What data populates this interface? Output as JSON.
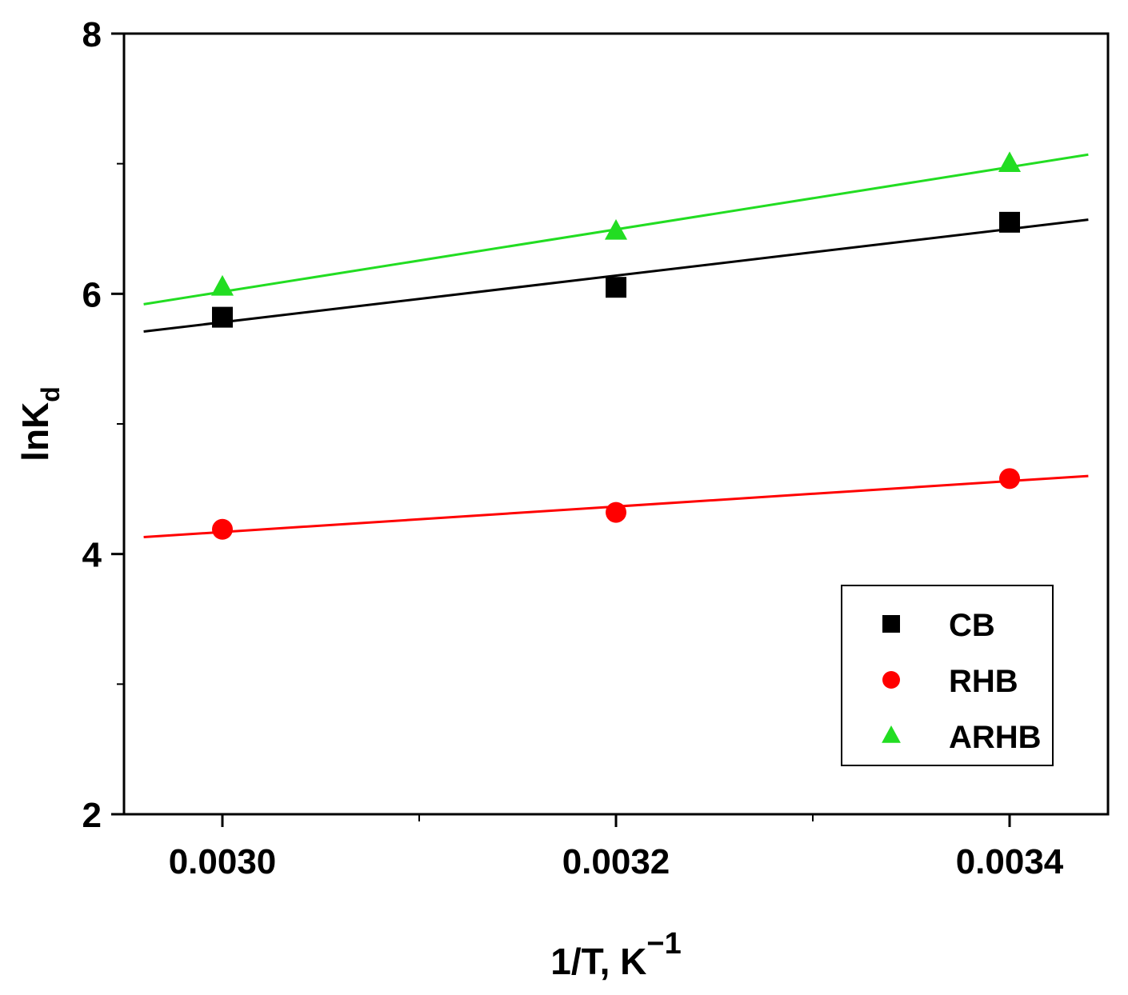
{
  "chart_data": {
    "type": "scatter",
    "title": "",
    "xlabel": {
      "base": "1/T, K",
      "superscript": "−1"
    },
    "ylabel": {
      "base": "lnK",
      "subscript": "d"
    },
    "xlim": [
      0.00295,
      0.00345
    ],
    "ylim": [
      2,
      8
    ],
    "xticks": [
      {
        "value": 0.003,
        "label": "0.0030"
      },
      {
        "value": 0.0032,
        "label": "0.0032"
      },
      {
        "value": 0.0034,
        "label": "0.0034"
      }
    ],
    "xminor": [
      0.0031,
      0.0033
    ],
    "yticks": [
      {
        "value": 2,
        "label": "2"
      },
      {
        "value": 4,
        "label": "4"
      },
      {
        "value": 6,
        "label": "6"
      },
      {
        "value": 8,
        "label": "8"
      }
    ],
    "yminor": [
      3,
      5,
      7
    ],
    "grid": false,
    "legend_position": "bottom-right",
    "series": [
      {
        "name": "CB",
        "marker": "square",
        "color": "#000000",
        "x": [
          0.003,
          0.0032,
          0.0034
        ],
        "y": [
          5.82,
          6.05,
          6.55
        ],
        "fit": {
          "x": [
            0.00296,
            0.00344
          ],
          "y": [
            5.71,
            6.57
          ]
        }
      },
      {
        "name": "RHB",
        "marker": "circle",
        "color": "#ff0000",
        "x": [
          0.003,
          0.0032,
          0.0034
        ],
        "y": [
          4.19,
          4.32,
          4.58
        ],
        "fit": {
          "x": [
            0.00296,
            0.00344
          ],
          "y": [
            4.13,
            4.6
          ]
        }
      },
      {
        "name": "ARHB",
        "marker": "triangle",
        "color": "#22dd22",
        "x": [
          0.003,
          0.0032,
          0.0034
        ],
        "y": [
          6.05,
          6.48,
          7.0
        ],
        "fit": {
          "x": [
            0.00296,
            0.00344
          ],
          "y": [
            5.92,
            7.07
          ]
        }
      }
    ]
  }
}
